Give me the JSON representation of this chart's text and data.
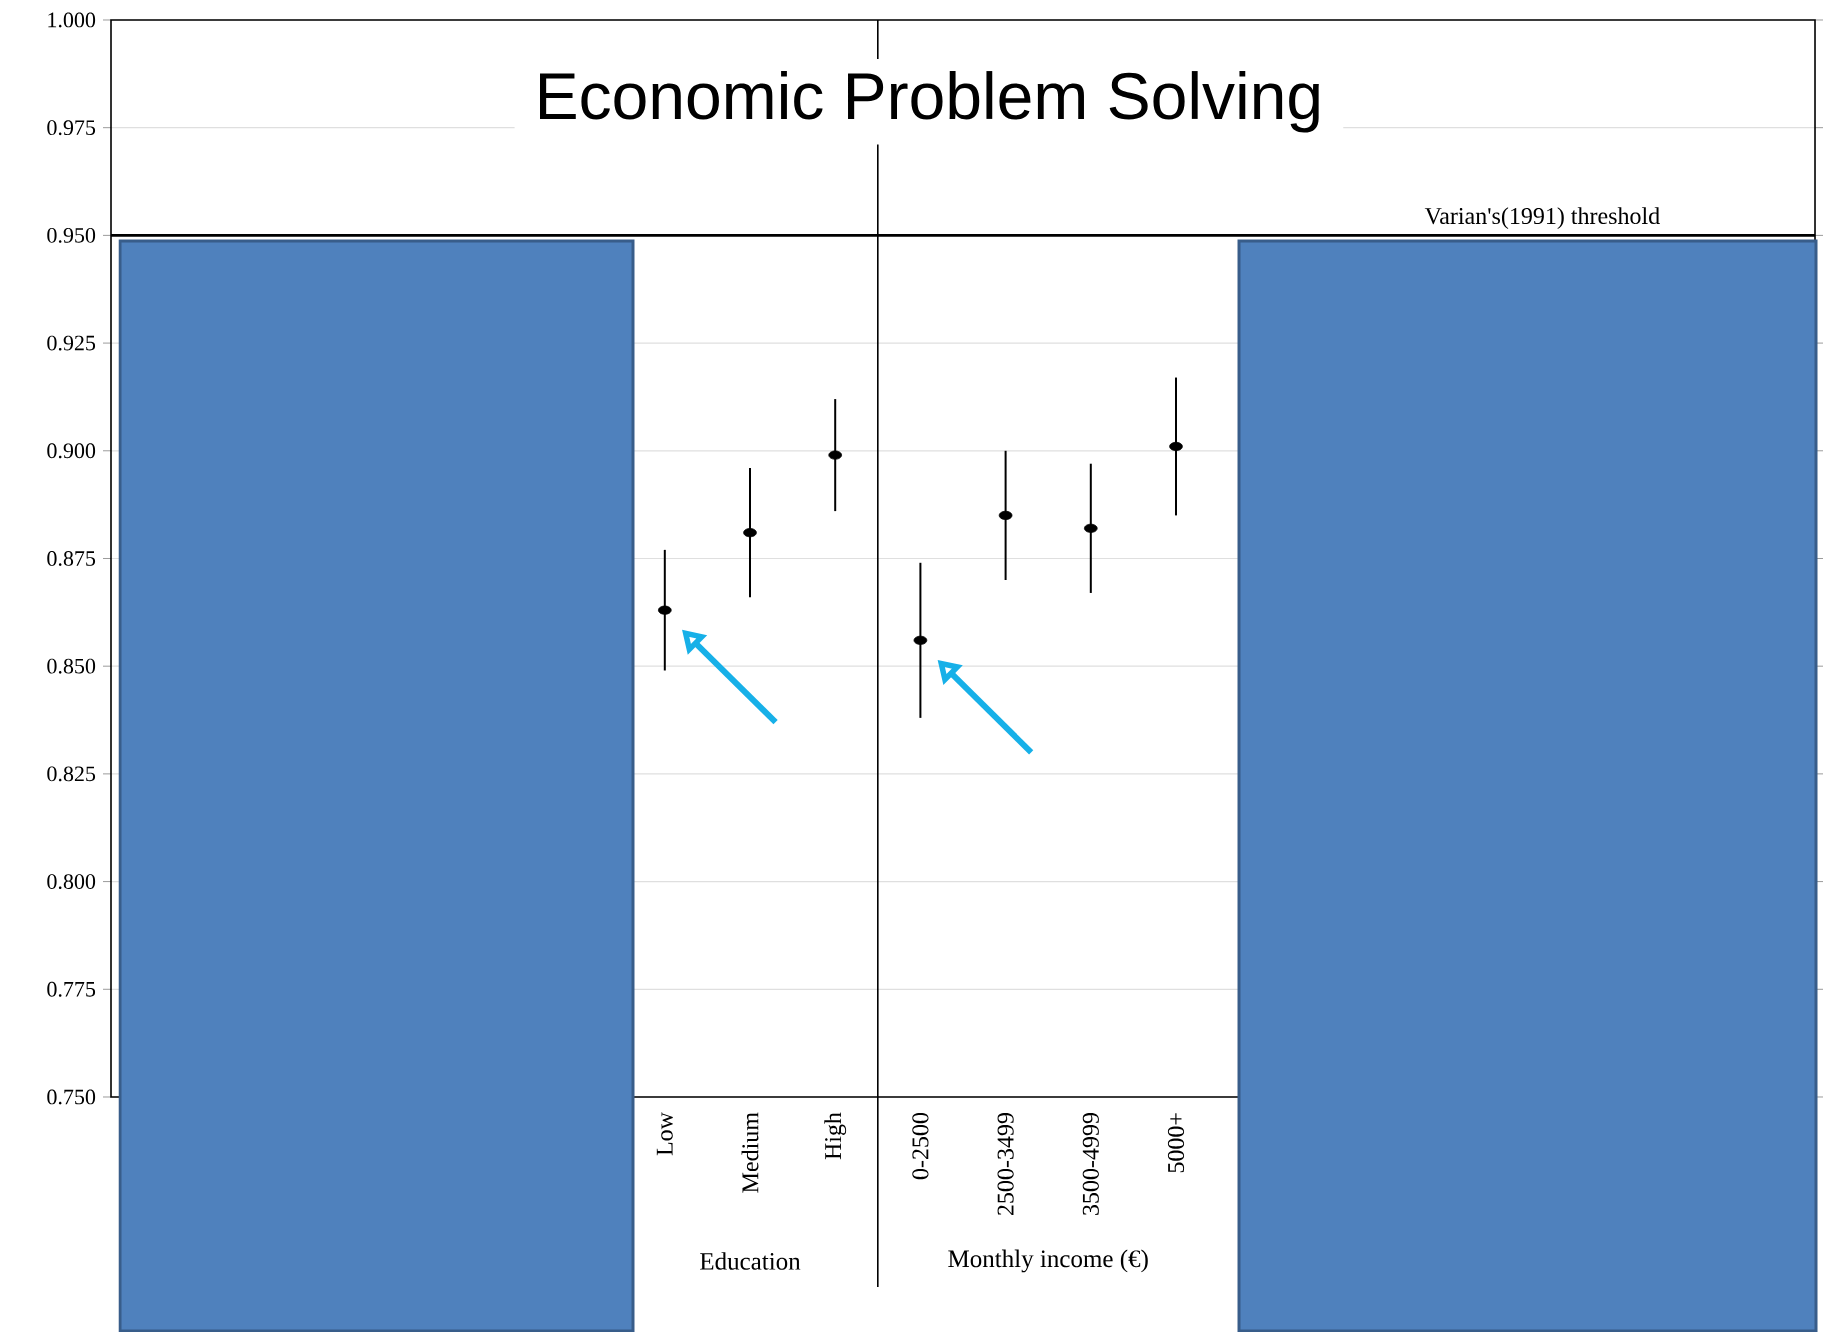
{
  "chart_data": {
    "type": "scatter",
    "title": "Economic Problem Solving",
    "categories": [
      null,
      null,
      null,
      null,
      null,
      null,
      "Low",
      "Medium",
      "High",
      "0-2500",
      "2500-3499",
      "3500-4999",
      "5000+",
      null,
      null,
      null,
      null,
      null,
      null,
      null
    ],
    "values": [
      null,
      null,
      null,
      null,
      null,
      null,
      0.863,
      0.881,
      0.899,
      0.856,
      0.885,
      0.882,
      0.901,
      null,
      null,
      null,
      null,
      null,
      null,
      null
    ],
    "errors": [
      null,
      null,
      null,
      null,
      null,
      null,
      0.014,
      0.015,
      0.013,
      0.018,
      0.015,
      0.015,
      0.016,
      null,
      null,
      null,
      null,
      null,
      null,
      null
    ],
    "color": "#000000",
    "ylim": [
      0.75,
      1.0
    ],
    "yticks": [
      {
        "value": 0.75,
        "label": "0.750"
      },
      {
        "value": 0.775,
        "label": "0.775"
      },
      {
        "value": 0.8,
        "label": "0.800"
      },
      {
        "value": 0.825,
        "label": "0.825"
      },
      {
        "value": 0.85,
        "label": "0.850"
      },
      {
        "value": 0.875,
        "label": "0.875"
      },
      {
        "value": 0.9,
        "label": "0.900"
      },
      {
        "value": 0.925,
        "label": "0.925"
      },
      {
        "value": 0.95,
        "label": "0.950"
      },
      {
        "value": 0.975,
        "label": "0.975"
      },
      {
        "value": 1.0,
        "label": "1.000"
      }
    ],
    "grid": "y",
    "ref_lines": [
      {
        "axis": "y",
        "value": 0.95,
        "label": "Varian's(1991) threshold"
      }
    ],
    "annotations": [
      "Education",
      "Monthly income (€)"
    ]
  }
}
